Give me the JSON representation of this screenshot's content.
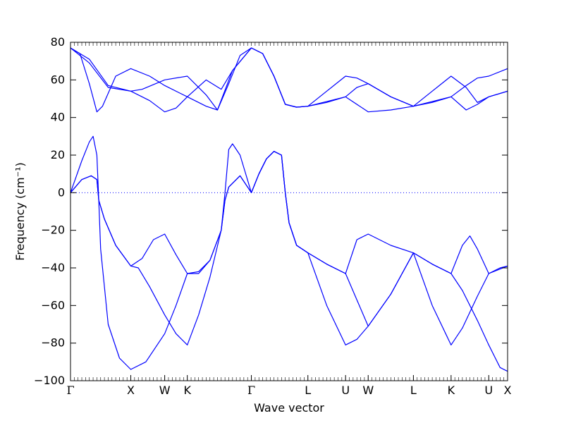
{
  "chart_data": {
    "type": "line",
    "xlabel": "Wave vector",
    "ylabel": "Frequency (cm⁻¹)",
    "ylim": [
      -100,
      80
    ],
    "yticks": [
      -100,
      -80,
      -60,
      -40,
      -20,
      0,
      20,
      40,
      60,
      80
    ],
    "xlim": [
      0,
      11.6
    ],
    "high_symmetry_points": [
      {
        "label": "Γ",
        "x": 0.0
      },
      {
        "label": "X",
        "x": 1.6
      },
      {
        "label": "W",
        "x": 2.5
      },
      {
        "label": "K",
        "x": 3.1
      },
      {
        "label": "Γ",
        "x": 4.8
      },
      {
        "label": "L",
        "x": 6.3
      },
      {
        "label": "U",
        "x": 7.3
      },
      {
        "label": "W",
        "x": 7.9
      },
      {
        "label": "L",
        "x": 9.1
      },
      {
        "label": "K",
        "x": 10.1
      },
      {
        "label": "U",
        "x": 11.1
      },
      {
        "label": "X",
        "x": 11.6
      }
    ],
    "zero_line": {
      "y": 0,
      "style": "dotted"
    },
    "series_color": "#0000ff",
    "series": [
      {
        "values": [
          [
            0,
            77
          ],
          [
            0.25,
            74
          ],
          [
            0.5,
            58
          ],
          [
            0.7,
            43
          ],
          [
            0.85,
            46
          ],
          [
            1.2,
            62
          ],
          [
            1.6,
            66
          ],
          [
            2.1,
            62
          ],
          [
            2.5,
            57
          ],
          [
            3.1,
            51
          ],
          [
            3.6,
            46
          ],
          [
            3.9,
            44
          ],
          [
            4.2,
            58
          ],
          [
            4.5,
            73
          ],
          [
            4.8,
            77
          ],
          [
            5.1,
            74
          ],
          [
            5.4,
            62
          ],
          [
            5.7,
            47
          ],
          [
            6.0,
            45.5
          ],
          [
            6.3,
            46
          ],
          [
            6.8,
            54
          ],
          [
            7.3,
            62
          ],
          [
            7.6,
            61
          ],
          [
            7.9,
            58
          ],
          [
            8.5,
            51
          ],
          [
            9.1,
            46
          ],
          [
            9.6,
            54
          ],
          [
            10.1,
            62
          ],
          [
            10.5,
            56
          ],
          [
            10.8,
            48
          ],
          [
            11.1,
            51
          ],
          [
            11.6,
            54
          ]
        ]
      },
      {
        "values": [
          [
            0,
            77
          ],
          [
            0.5,
            69
          ],
          [
            1.0,
            56
          ],
          [
            1.6,
            54
          ],
          [
            2.1,
            49
          ],
          [
            2.5,
            43
          ],
          [
            2.8,
            45
          ],
          [
            3.1,
            51
          ],
          [
            3.6,
            60
          ],
          [
            4.0,
            55
          ],
          [
            4.3,
            65
          ],
          [
            4.8,
            77
          ],
          [
            5.1,
            74
          ],
          [
            5.4,
            62
          ],
          [
            5.7,
            47
          ],
          [
            6.0,
            45.5
          ],
          [
            6.3,
            46
          ],
          [
            6.8,
            48
          ],
          [
            7.3,
            51
          ],
          [
            7.6,
            56
          ],
          [
            7.9,
            58
          ],
          [
            8.5,
            51
          ],
          [
            9.1,
            46
          ],
          [
            9.6,
            48
          ],
          [
            10.1,
            51
          ],
          [
            10.5,
            57
          ],
          [
            10.8,
            61
          ],
          [
            11.1,
            62
          ],
          [
            11.6,
            66
          ]
        ]
      },
      {
        "values": [
          [
            0,
            77
          ],
          [
            0.5,
            71
          ],
          [
            1.0,
            57
          ],
          [
            1.6,
            54
          ],
          [
            1.9,
            55
          ],
          [
            2.5,
            60
          ],
          [
            3.1,
            62
          ],
          [
            3.6,
            52
          ],
          [
            3.9,
            44
          ],
          [
            4.3,
            65
          ],
          [
            4.8,
            77
          ],
          [
            5.1,
            74
          ],
          [
            5.4,
            62
          ],
          [
            5.7,
            47
          ],
          [
            6.0,
            45.5
          ],
          [
            6.3,
            46
          ],
          [
            7.3,
            51
          ],
          [
            7.9,
            43
          ],
          [
            8.5,
            44
          ],
          [
            9.1,
            46
          ],
          [
            10.1,
            51
          ],
          [
            10.5,
            44
          ],
          [
            10.8,
            47
          ],
          [
            11.1,
            51
          ],
          [
            11.6,
            54
          ]
        ]
      },
      {
        "values": [
          [
            0,
            0
          ],
          [
            0.3,
            17
          ],
          [
            0.5,
            27
          ],
          [
            0.6,
            30
          ],
          [
            0.7,
            20
          ],
          [
            0.75,
            -4
          ],
          [
            0.9,
            -14
          ],
          [
            1.2,
            -28
          ],
          [
            1.6,
            -39
          ],
          [
            1.9,
            -35
          ],
          [
            2.2,
            -25
          ],
          [
            2.5,
            -22
          ],
          [
            2.8,
            -33
          ],
          [
            3.1,
            -43
          ],
          [
            3.4,
            -42
          ],
          [
            3.7,
            -36
          ],
          [
            4.0,
            -20
          ],
          [
            4.1,
            0
          ],
          [
            4.2,
            23
          ],
          [
            4.3,
            26
          ],
          [
            4.5,
            20
          ],
          [
            4.8,
            0
          ],
          [
            5.0,
            10
          ],
          [
            5.2,
            18
          ],
          [
            5.4,
            22
          ],
          [
            5.6,
            20
          ],
          [
            5.7,
            0
          ],
          [
            5.8,
            -16
          ],
          [
            6.0,
            -28
          ],
          [
            6.3,
            -32
          ],
          [
            6.8,
            -38
          ],
          [
            7.3,
            -43
          ],
          [
            7.6,
            -25
          ],
          [
            7.9,
            -22
          ],
          [
            8.5,
            -28
          ],
          [
            9.1,
            -32
          ],
          [
            9.6,
            -38
          ],
          [
            10.1,
            -43
          ],
          [
            10.4,
            -28
          ],
          [
            10.6,
            -23
          ],
          [
            10.8,
            -30
          ],
          [
            11.1,
            -43
          ],
          [
            11.6,
            -39
          ]
        ]
      },
      {
        "values": [
          [
            0,
            0
          ],
          [
            0.3,
            7
          ],
          [
            0.55,
            9
          ],
          [
            0.7,
            7
          ],
          [
            0.75,
            -4
          ],
          [
            0.9,
            -14
          ],
          [
            1.2,
            -28
          ],
          [
            1.6,
            -39
          ],
          [
            1.8,
            -40
          ],
          [
            2.1,
            -50
          ],
          [
            2.5,
            -65
          ],
          [
            2.8,
            -75
          ],
          [
            3.1,
            -81
          ],
          [
            3.4,
            -65
          ],
          [
            3.7,
            -45
          ],
          [
            4.0,
            -20
          ],
          [
            4.1,
            -4
          ],
          [
            4.2,
            3
          ],
          [
            4.5,
            9
          ],
          [
            4.8,
            0
          ],
          [
            5.0,
            10
          ],
          [
            5.2,
            18
          ],
          [
            5.4,
            22
          ],
          [
            5.6,
            20
          ],
          [
            5.7,
            0
          ],
          [
            5.8,
            -16
          ],
          [
            6.0,
            -28
          ],
          [
            6.3,
            -32
          ],
          [
            6.8,
            -38
          ],
          [
            7.3,
            -43
          ],
          [
            7.6,
            -57
          ],
          [
            7.9,
            -71
          ],
          [
            8.5,
            -54
          ],
          [
            9.1,
            -32
          ],
          [
            9.6,
            -38
          ],
          [
            10.1,
            -43
          ],
          [
            10.4,
            -52
          ],
          [
            10.8,
            -68
          ],
          [
            11.1,
            -81
          ],
          [
            11.4,
            -93
          ],
          [
            11.6,
            -95
          ]
        ]
      },
      {
        "values": [
          [
            0,
            0
          ],
          [
            0.3,
            7
          ],
          [
            0.55,
            9
          ],
          [
            0.7,
            7
          ],
          [
            0.75,
            -4
          ],
          [
            0.8,
            -30
          ],
          [
            1.0,
            -70
          ],
          [
            1.3,
            -88
          ],
          [
            1.6,
            -94
          ],
          [
            2.0,
            -90
          ],
          [
            2.5,
            -75
          ],
          [
            2.8,
            -60
          ],
          [
            3.1,
            -43
          ],
          [
            3.4,
            -43
          ],
          [
            3.7,
            -36
          ],
          [
            4.0,
            -20
          ],
          [
            4.1,
            -4
          ],
          [
            4.2,
            3
          ],
          [
            4.5,
            9
          ],
          [
            4.8,
            0
          ],
          [
            5.0,
            10
          ],
          [
            5.2,
            18
          ],
          [
            5.4,
            22
          ],
          [
            5.6,
            20
          ],
          [
            5.7,
            0
          ],
          [
            5.8,
            -16
          ],
          [
            6.0,
            -28
          ],
          [
            6.3,
            -32
          ],
          [
            6.8,
            -60
          ],
          [
            7.3,
            -81
          ],
          [
            7.6,
            -78
          ],
          [
            7.9,
            -71
          ],
          [
            8.5,
            -54
          ],
          [
            9.1,
            -32
          ],
          [
            9.6,
            -60
          ],
          [
            10.1,
            -81
          ],
          [
            10.4,
            -72
          ],
          [
            10.8,
            -55
          ],
          [
            11.1,
            -43
          ],
          [
            11.4,
            -40
          ],
          [
            11.6,
            -39
          ]
        ]
      }
    ]
  }
}
